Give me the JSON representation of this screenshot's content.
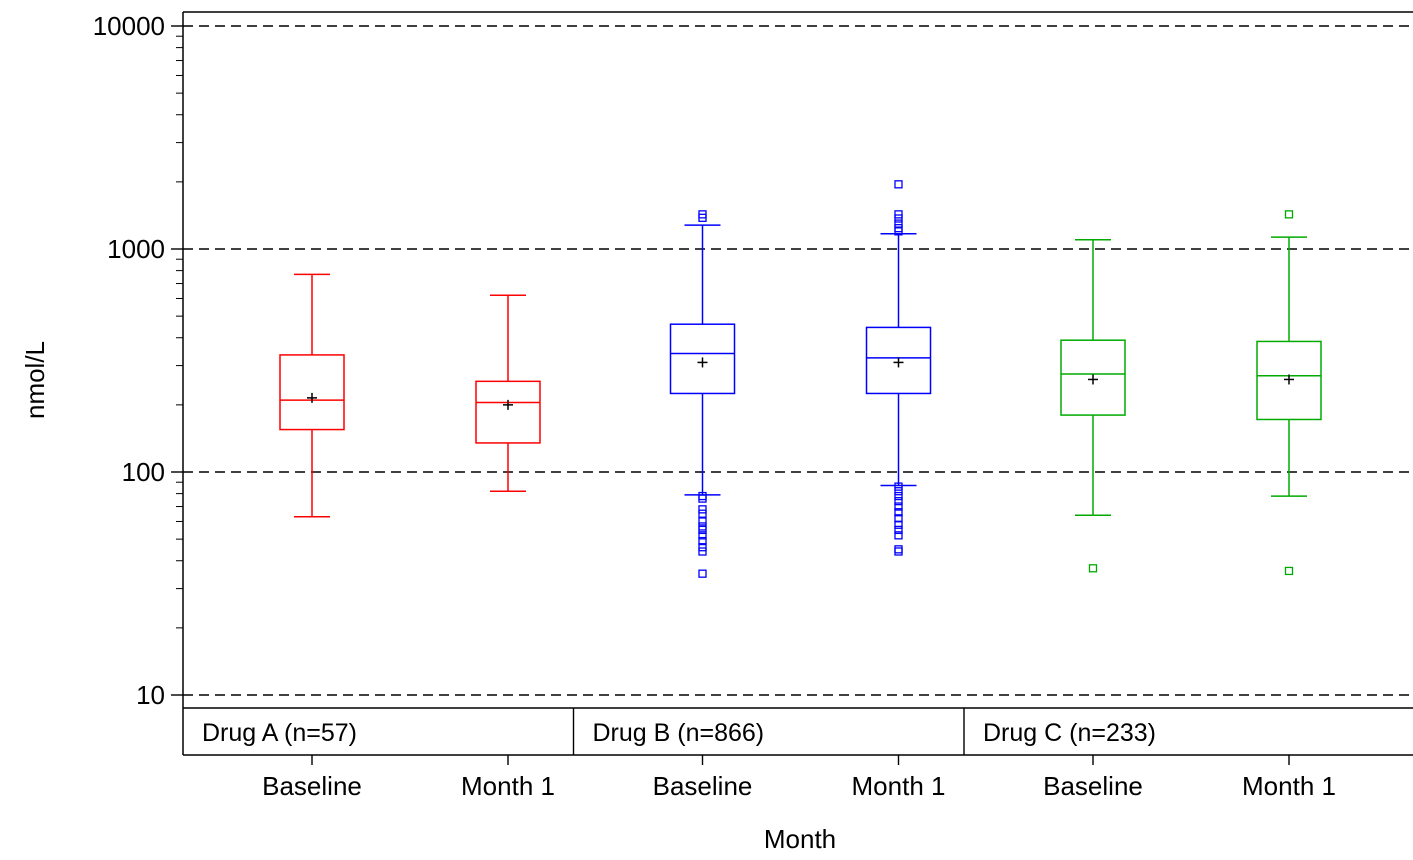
{
  "chart_data": {
    "type": "box",
    "ylabel": "nmol/L",
    "xlabel": "Month",
    "y_scale": "log",
    "ylim": [
      10,
      10000
    ],
    "y_ticks": [
      {
        "value": 10,
        "label": "10"
      },
      {
        "value": 100,
        "label": "100"
      },
      {
        "value": 1000,
        "label": "1000"
      },
      {
        "value": 10000,
        "label": "10000"
      }
    ],
    "reference_lines": [
      10,
      100,
      1000,
      10000
    ],
    "groups": [
      {
        "label": "Drug A (n=57)",
        "color": "#ff0000",
        "boxes": [
          {
            "category": "Baseline",
            "whisker_low": 63,
            "q1": 155,
            "median": 210,
            "q3": 335,
            "whisker_high": 770,
            "mean": 215,
            "outliers": []
          },
          {
            "category": "Month 1",
            "whisker_low": 82,
            "q1": 135,
            "median": 205,
            "q3": 255,
            "whisker_high": 620,
            "mean": 200,
            "outliers": []
          }
        ]
      },
      {
        "label": "Drug B (n=866)",
        "color": "#0000ff",
        "boxes": [
          {
            "category": "Baseline",
            "whisker_low": 79,
            "q1": 225,
            "median": 340,
            "q3": 460,
            "whisker_high": 1280,
            "mean": 310,
            "outliers": [
              1430,
              1380,
              78,
              76,
              68,
              65,
              60,
              57,
              55,
              52,
              49,
              46,
              44,
              35
            ]
          },
          {
            "category": "Month 1",
            "whisker_low": 87,
            "q1": 225,
            "median": 325,
            "q3": 445,
            "whisker_high": 1170,
            "mean": 310,
            "outliers": [
              1950,
              1430,
              1370,
              1300,
              1240,
              1200,
              86,
              82,
              78,
              74,
              70,
              66,
              62,
              58,
              55,
              52,
              45,
              44
            ]
          }
        ]
      },
      {
        "label": "Drug C (n=233)",
        "color": "#00aa00",
        "boxes": [
          {
            "category": "Baseline",
            "whisker_low": 64,
            "q1": 180,
            "median": 275,
            "q3": 390,
            "whisker_high": 1100,
            "mean": 260,
            "outliers": [
              37
            ]
          },
          {
            "category": "Month 1",
            "whisker_low": 78,
            "q1": 172,
            "median": 270,
            "q3": 385,
            "whisker_high": 1130,
            "mean": 260,
            "outliers": [
              1430,
              36
            ]
          }
        ]
      }
    ]
  }
}
